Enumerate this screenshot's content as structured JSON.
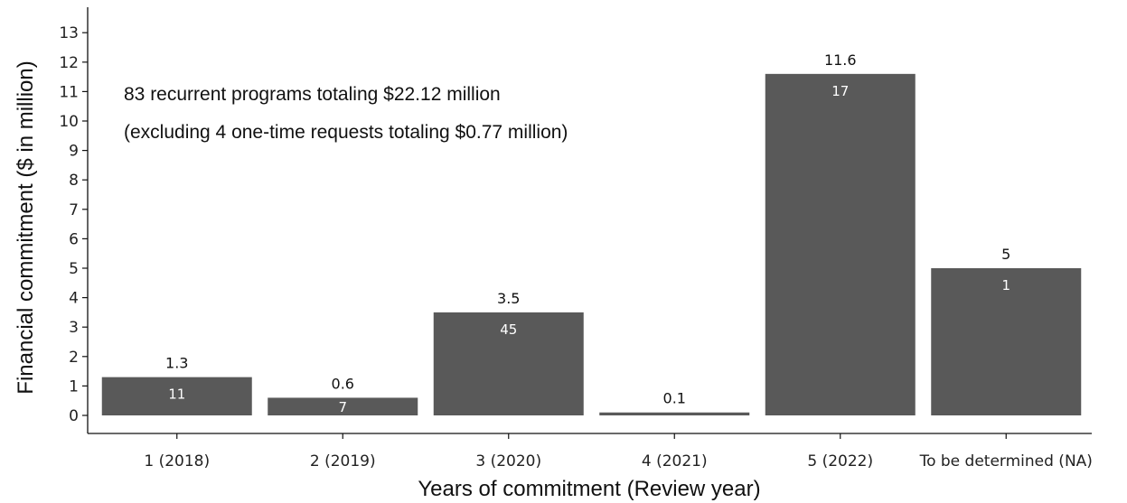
{
  "chart_data": {
    "type": "bar",
    "title": "",
    "xlabel": "Years of commitment (Review year)",
    "ylabel": "Financial commitment ($ in million)",
    "ylim": [
      0,
      13.5
    ],
    "yticks": [
      0,
      1,
      2,
      3,
      4,
      5,
      6,
      7,
      8,
      9,
      10,
      11,
      12,
      13
    ],
    "categories": [
      "1 (2018)",
      "2 (2019)",
      "3 (2020)",
      "4 (2021)",
      "5 (2022)",
      "To be determined (NA)"
    ],
    "values": [
      1.3,
      0.6,
      3.5,
      0.1,
      11.6,
      5
    ],
    "value_labels": [
      "1.3",
      "0.6",
      "3.5",
      "0.1",
      "11.6",
      "5"
    ],
    "count_labels": [
      "11",
      "7",
      "45",
      "",
      "17",
      "1"
    ],
    "bar_color": "#595959",
    "grid": false,
    "annotations": [
      "83 recurrent programs totaling $22.12 million",
      "(excluding 4 one-time requests totaling $0.77 million)"
    ]
  }
}
